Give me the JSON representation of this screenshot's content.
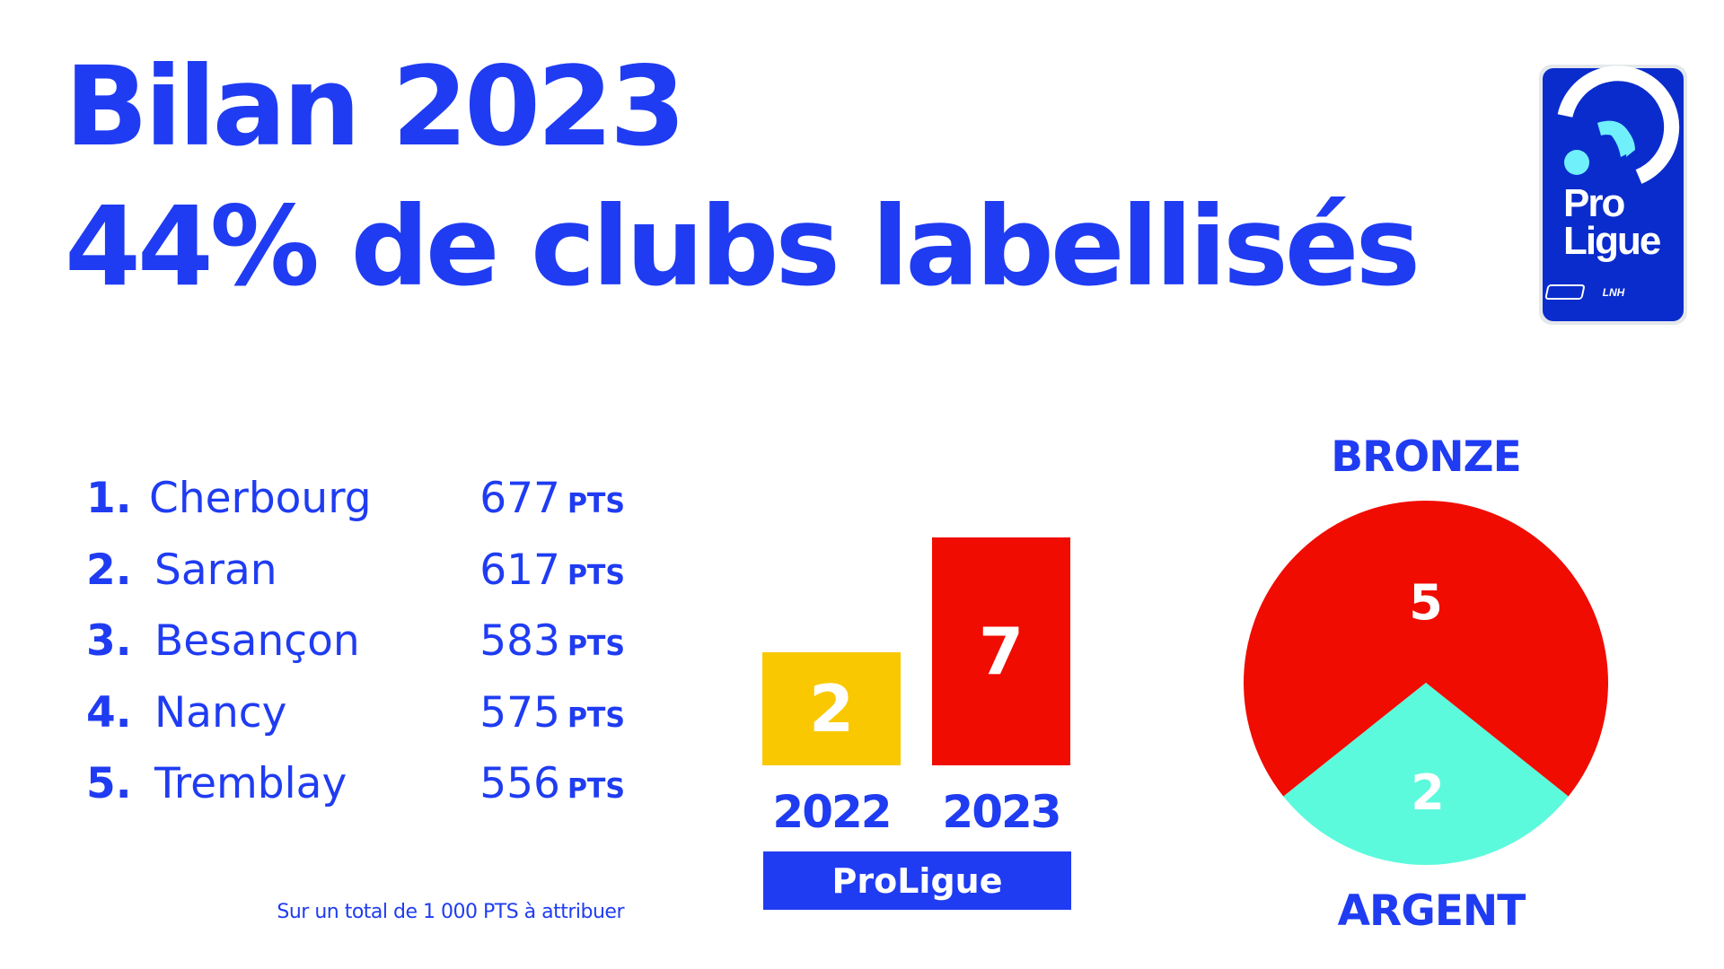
{
  "header": {
    "title": "Bilan 2023",
    "subtitle": "44% de clubs labellisés"
  },
  "logo": {
    "line1": "Pro",
    "line2": "Ligue",
    "badge": "LNH",
    "bg": "#0a2ccc",
    "accent": "#6ff0fa"
  },
  "ranking": {
    "unit": "PTS",
    "items": [
      {
        "rank": "1.",
        "club": "Cherbourg",
        "points": "677"
      },
      {
        "rank": "2.",
        "club": "Saran",
        "points": "617"
      },
      {
        "rank": "3.",
        "club": "Besançon",
        "points": "583"
      },
      {
        "rank": "4.",
        "club": "Nancy",
        "points": "575"
      },
      {
        "rank": "5.",
        "club": "Tremblay",
        "points": "556"
      }
    ],
    "footnote": "Sur un total de 1 000 PTS à attribuer"
  },
  "colors": {
    "primary": "#1f3cf2",
    "yellow": "#fac800",
    "red": "#f00c00",
    "teal": "#5cfadc"
  },
  "chart_data": [
    {
      "type": "bar",
      "categories": [
        "2022",
        "2023"
      ],
      "values": [
        2,
        7
      ],
      "value_labels": [
        "2",
        "7"
      ],
      "colors": [
        "#fac800",
        "#f00c00"
      ],
      "group_label": "ProLigue"
    },
    {
      "type": "pie",
      "slices": [
        {
          "label": "BRONZE",
          "value": 5,
          "value_label": "5",
          "color": "#f00c00"
        },
        {
          "label": "ARGENT",
          "value": 2,
          "value_label": "2",
          "color": "#5cfadc"
        }
      ]
    }
  ]
}
